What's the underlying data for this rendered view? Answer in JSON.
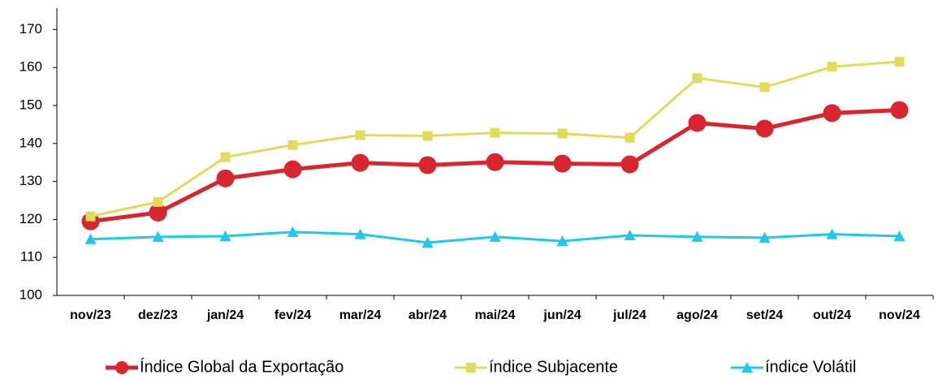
{
  "chart_data": {
    "type": "line",
    "categories": [
      "nov/23",
      "dez/23",
      "jan/24",
      "fev/24",
      "mar/24",
      "abr/24",
      "mai/24",
      "jun/24",
      "jul/24",
      "ago/24",
      "set/24",
      "out/24",
      "nov/24"
    ],
    "series": [
      {
        "name": "Índice Global da Exportação",
        "color": "#d9262e",
        "marker": "circle",
        "values": [
          119.5,
          121.8,
          130.8,
          133.2,
          134.9,
          134.3,
          135.1,
          134.7,
          134.5,
          145.4,
          143.9,
          148.0,
          148.8
        ]
      },
      {
        "name": "índice Subjacente",
        "color": "#e0dc5a",
        "marker": "square",
        "values": [
          120.8,
          124.6,
          136.4,
          139.6,
          142.2,
          142.0,
          142.8,
          142.6,
          141.5,
          157.2,
          154.8,
          160.2,
          161.5
        ]
      },
      {
        "name": "índice Volátil",
        "color": "#1ec8ef",
        "marker": "triangle",
        "values": [
          114.8,
          115.4,
          115.6,
          116.7,
          116.1,
          113.9,
          115.4,
          114.3,
          115.8,
          115.4,
          115.2,
          116.1,
          115.6
        ]
      }
    ],
    "ylim": [
      100,
      172
    ],
    "yticks": [
      100,
      110,
      120,
      130,
      140,
      150,
      160,
      170
    ],
    "grid": false,
    "legend": "bottom"
  }
}
